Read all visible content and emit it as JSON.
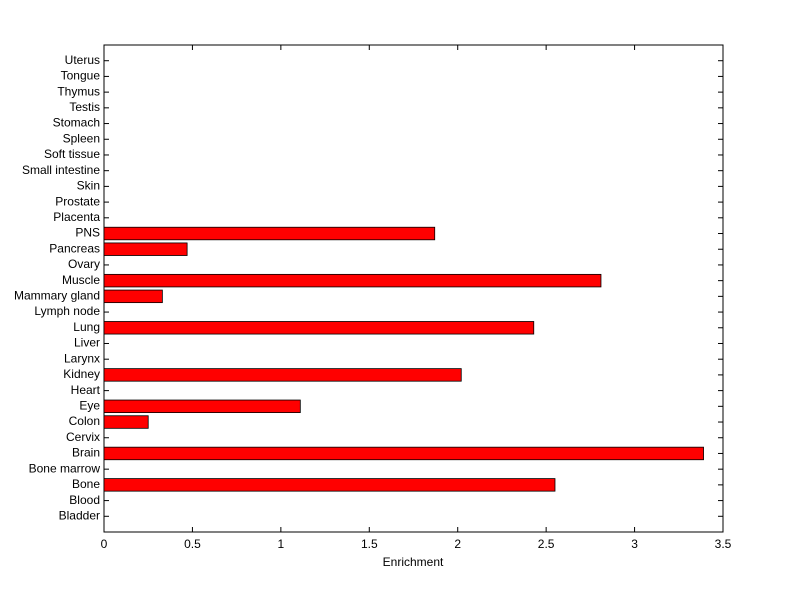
{
  "chart_data": {
    "type": "barh",
    "xlabel": "Enrichment",
    "categories": [
      "Bladder",
      "Blood",
      "Bone",
      "Bone marrow",
      "Brain",
      "Cervix",
      "Colon",
      "Eye",
      "Heart",
      "Kidney",
      "Larynx",
      "Liver",
      "Lung",
      "Lymph node",
      "Mammary gland",
      "Muscle",
      "Ovary",
      "Pancreas",
      "PNS",
      "Placenta",
      "Prostate",
      "Skin",
      "Small intestine",
      "Soft tissue",
      "Spleen",
      "Stomach",
      "Testis",
      "Thymus",
      "Tongue",
      "Uterus"
    ],
    "values": [
      0,
      0,
      2.55,
      0,
      3.39,
      0,
      0.25,
      1.11,
      0,
      2.02,
      0,
      0,
      2.43,
      0,
      0.33,
      2.81,
      0,
      0.47,
      1.87,
      0,
      0,
      0,
      0,
      0,
      0,
      0,
      0,
      0,
      0,
      0
    ],
    "color": "#ff0000",
    "xlim": [
      0,
      3.5
    ],
    "xticks": [
      0,
      0.5,
      1,
      1.5,
      2,
      2.5,
      3,
      3.5
    ]
  }
}
